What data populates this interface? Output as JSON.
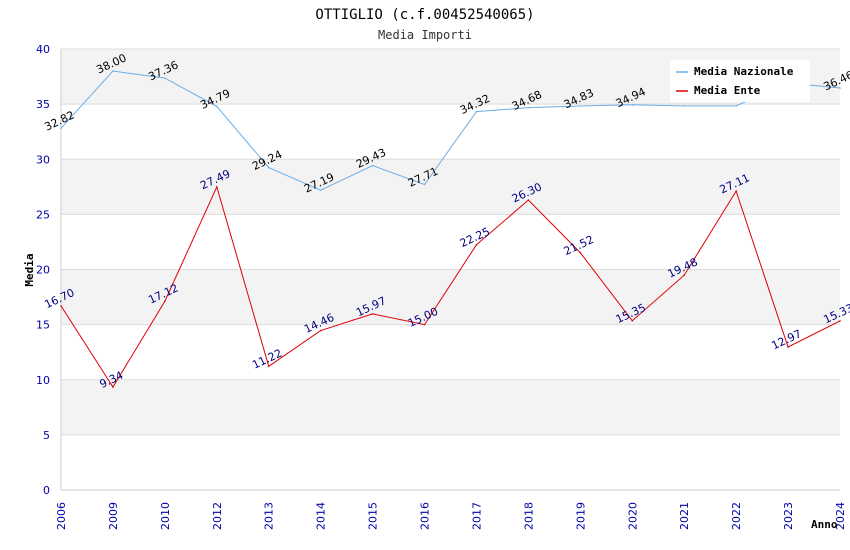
{
  "chart_data": {
    "type": "line",
    "title": "OTTIGLIO (c.f.00452540065)",
    "subtitle": "Media Importi",
    "xlabel": "Anno",
    "ylabel": "Media",
    "ylim": [
      0,
      40
    ],
    "yticks": [
      0,
      5,
      10,
      15,
      20,
      25,
      30,
      35,
      40
    ],
    "categories": [
      "2006",
      "2009",
      "2010",
      "2012",
      "2013",
      "2014",
      "2015",
      "2016",
      "2017",
      "2018",
      "2019",
      "2020",
      "2021",
      "2022",
      "2023",
      "2024"
    ],
    "legend_position": "top-right",
    "series": [
      {
        "name": "Media Nazionale",
        "color": "#6aaee8",
        "values": [
          32.82,
          38.0,
          37.36,
          34.79,
          29.24,
          27.19,
          29.43,
          27.71,
          34.32,
          34.68,
          34.83,
          34.94,
          34.84,
          34.84,
          36.92,
          36.46
        ],
        "labels": [
          "32.82",
          "38.00",
          "37.36",
          "34.79",
          "29.24",
          "27.19",
          "29.43",
          "27.71",
          "34.32",
          "34.68",
          "34.83",
          "34.94",
          "",
          "",
          "",
          "36.46"
        ]
      },
      {
        "name": "Media Ente",
        "color": "#dd0000",
        "values": [
          16.7,
          9.34,
          17.12,
          27.49,
          11.22,
          14.46,
          15.97,
          15.0,
          22.25,
          26.3,
          21.52,
          15.35,
          19.48,
          27.11,
          12.97,
          15.33
        ],
        "labels": [
          "16.70",
          "9.34",
          "17.12",
          "27.49",
          "11.22",
          "14.46",
          "15.97",
          "15.00",
          "22.25",
          "26.30",
          "21.52",
          "15.35",
          "19.48",
          "27.11",
          "12.97",
          "15.33"
        ]
      }
    ]
  }
}
